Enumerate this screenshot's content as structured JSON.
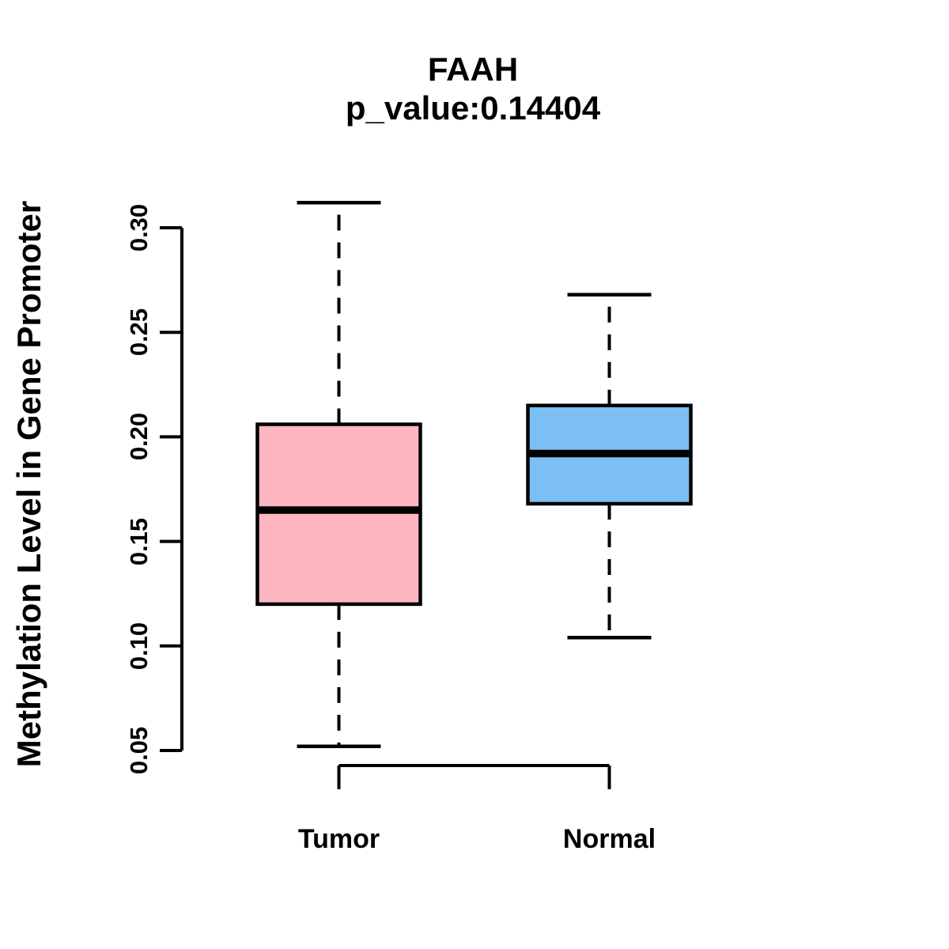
{
  "figure": {
    "background_color": "#ffffff",
    "stroke_color": "#000000"
  },
  "chart_data": {
    "type": "boxplot",
    "title": "FAAH",
    "subtitle": "p_value:0.14404",
    "ylabel": "Methylation Level in Gene Promoter",
    "xlabel": "",
    "categories": [
      "Tumor",
      "Normal"
    ],
    "series": [
      {
        "name": "Tumor",
        "color": "#FFB6C1",
        "whisker_low": 0.052,
        "q1": 0.12,
        "median": 0.165,
        "q3": 0.206,
        "whisker_high": 0.312
      },
      {
        "name": "Normal",
        "color": "#7BBFF5",
        "whisker_low": 0.104,
        "q1": 0.168,
        "median": 0.192,
        "q3": 0.215,
        "whisker_high": 0.268
      }
    ],
    "yticks": [
      "0.05",
      "0.10",
      "0.15",
      "0.20",
      "0.25",
      "0.30"
    ],
    "ytick_values": [
      0.05,
      0.1,
      0.15,
      0.2,
      0.25,
      0.3
    ],
    "ylim": [
      0.05,
      0.3
    ],
    "grid": false,
    "legend": "none"
  }
}
